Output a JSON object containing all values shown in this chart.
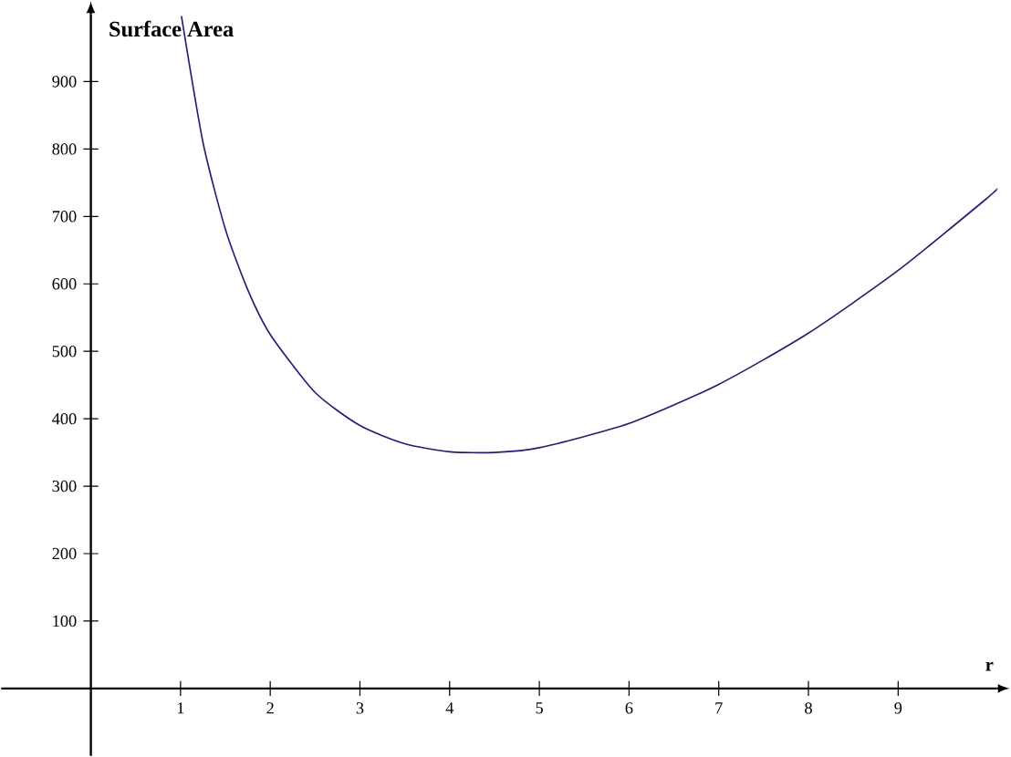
{
  "chart_data": {
    "type": "line",
    "xlabel": "r",
    "ylabel": "Surface Area",
    "x": [
      1.01,
      1.25,
      1.5,
      1.75,
      2,
      2.5,
      3,
      3.5,
      4,
      4.5,
      5,
      6,
      7,
      8,
      9,
      10,
      10.1
    ],
    "series": [
      {
        "color": "#1c1c8c",
        "values": [
          997,
          810,
          681,
          591,
          525,
          439,
          390,
          363,
          351,
          350,
          357,
          393,
          451,
          527,
          620,
          728,
          741
        ]
      }
    ],
    "xlim": [
      -1,
      10.1
    ],
    "ylim": [
      -100,
      1000
    ],
    "xticks": [
      1,
      2,
      3,
      4,
      5,
      6,
      7,
      8,
      9
    ],
    "yticks": [
      100,
      200,
      300,
      400,
      500,
      600,
      700,
      800,
      900
    ],
    "marker": "none",
    "line_style": "solid"
  }
}
